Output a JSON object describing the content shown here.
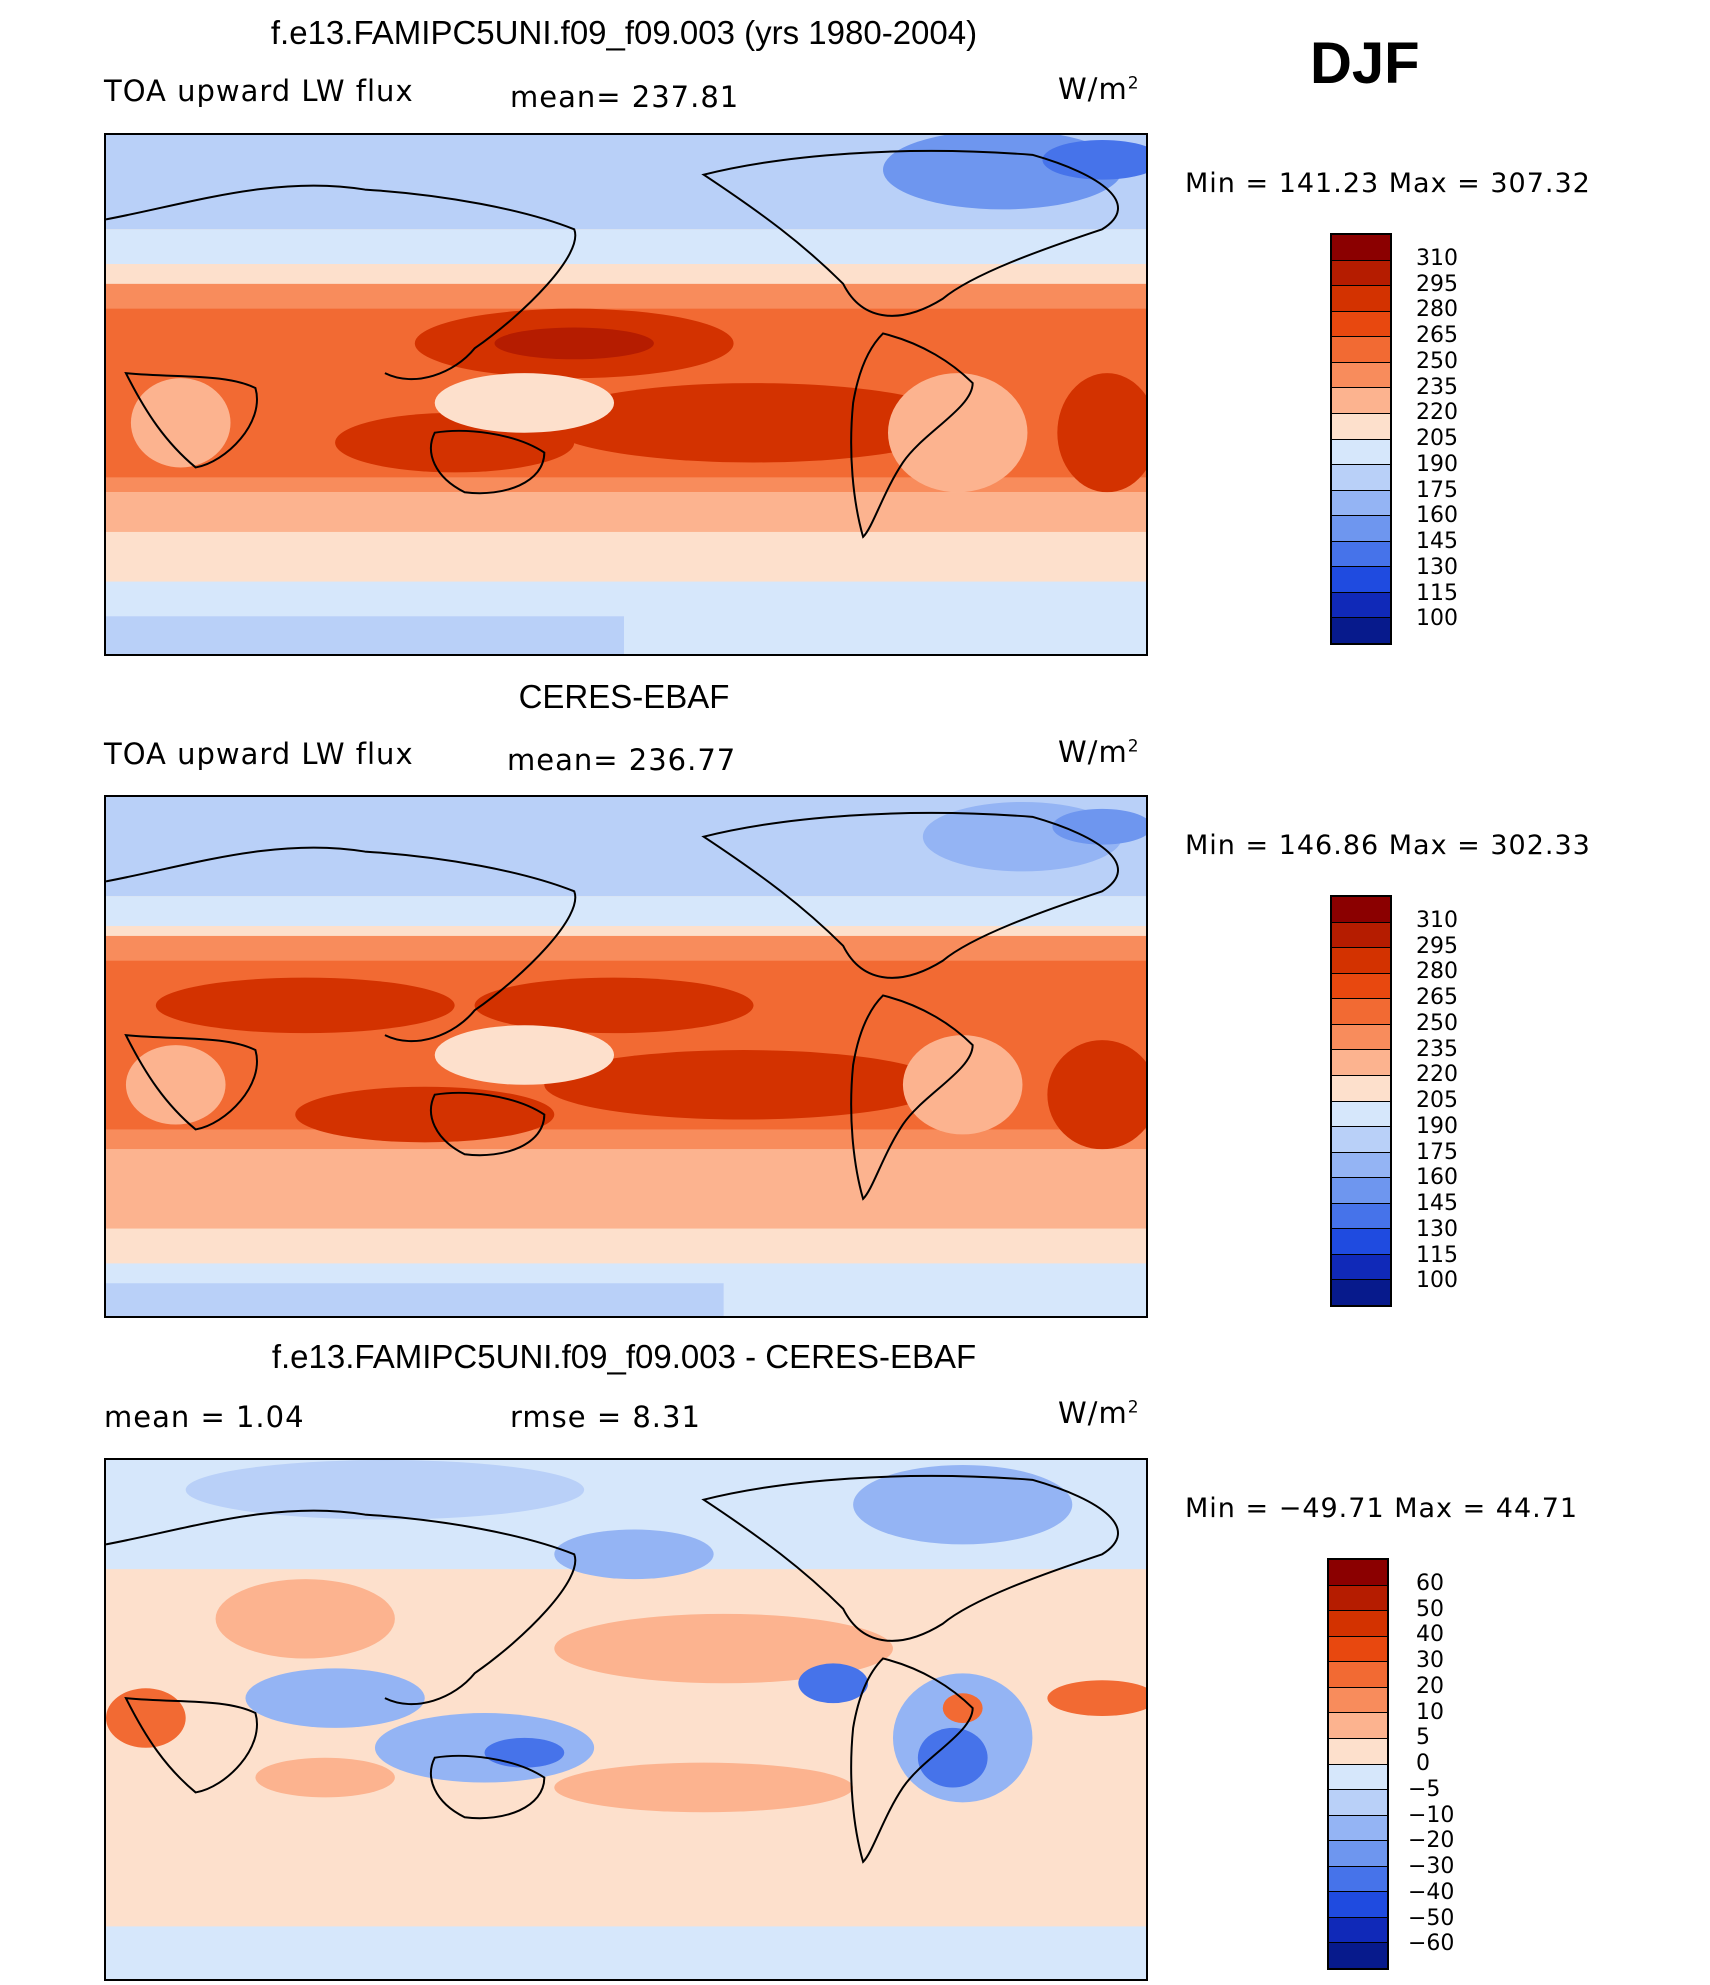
{
  "season": "DJF",
  "panels": [
    {
      "title": "f.e13.FAMIPC5UNI.f09_f09.003 (yrs 1980-2004)",
      "left_label": "TOA upward  LW flux",
      "center_label": "mean=  237.81",
      "units": "W/m",
      "units_exp": "2",
      "minmax": "Min  =  141.23  Max  =  307.32",
      "colorbar": {
        "labels": [
          "310",
          "295",
          "280",
          "265",
          "250",
          "235",
          "220",
          "205",
          "190",
          "175",
          "160",
          "145",
          "130",
          "115",
          "100"
        ],
        "colors": [
          "#8b0000",
          "#b51c00",
          "#d33200",
          "#e8480f",
          "#f26a33",
          "#f88c5c",
          "#fcb38f",
          "#fde0cc",
          "#d6e7fb",
          "#b9d0f8",
          "#94b4f4",
          "#6e96ef",
          "#4673ea",
          "#1f4be0",
          "#1029b8",
          "#071a8c"
        ]
      }
    },
    {
      "title": "CERES-EBAF",
      "left_label": "TOA upward  LW flux",
      "center_label": "mean=  236.77",
      "units": "W/m",
      "units_exp": "2",
      "minmax": "Min  =  146.86  Max  =  302.33",
      "colorbar": {
        "labels": [
          "310",
          "295",
          "280",
          "265",
          "250",
          "235",
          "220",
          "205",
          "190",
          "175",
          "160",
          "145",
          "130",
          "115",
          "100"
        ],
        "colors": [
          "#8b0000",
          "#b51c00",
          "#d33200",
          "#e8480f",
          "#f26a33",
          "#f88c5c",
          "#fcb38f",
          "#fde0cc",
          "#d6e7fb",
          "#b9d0f8",
          "#94b4f4",
          "#6e96ef",
          "#4673ea",
          "#1f4be0",
          "#1029b8",
          "#071a8c"
        ]
      }
    },
    {
      "title": "f.e13.FAMIPC5UNI.f09_f09.003 - CERES-EBAF",
      "left_label": "mean  =     1.04",
      "center_label": "rmse  =     8.31",
      "units": "W/m",
      "units_exp": "2",
      "minmax": "Min  =  −49.71  Max  =   44.71",
      "colorbar": {
        "labels": [
          "60",
          "50",
          "40",
          "30",
          "20",
          "10",
          "5",
          "0",
          "−5",
          "−10",
          "−20",
          "−30",
          "−40",
          "−50",
          "−60"
        ],
        "colors": [
          "#8b0000",
          "#b51c00",
          "#d33200",
          "#e8480f",
          "#f26a33",
          "#f88c5c",
          "#fcb38f",
          "#fde0cc",
          "#d6e7fb",
          "#b9d0f8",
          "#94b4f4",
          "#6e96ef",
          "#4673ea",
          "#1f4be0",
          "#1029b8",
          "#071a8c"
        ]
      }
    }
  ]
}
